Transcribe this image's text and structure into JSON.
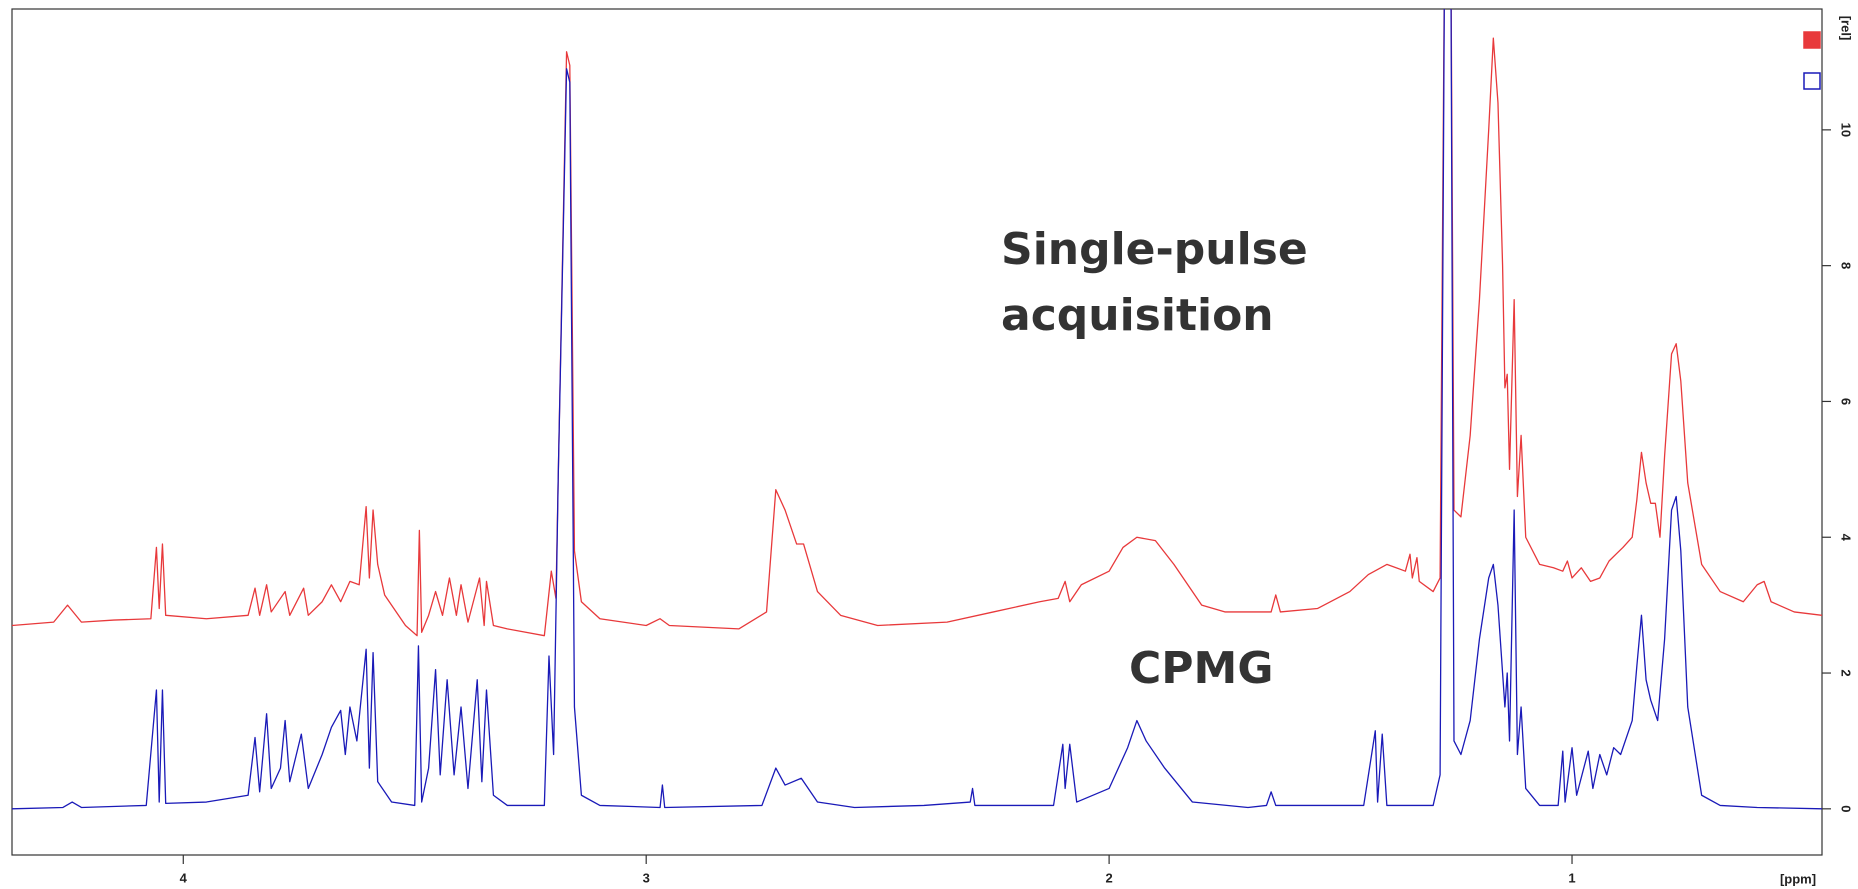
{
  "chart_data": {
    "type": "line",
    "xlabel": "[ppm]",
    "ylabel": "[rel]",
    "xlim": [
      4.37,
      0.46
    ],
    "ylim": [
      -0.68,
      11.78
    ],
    "xticks": [
      4,
      3,
      2,
      1
    ],
    "yticks": [
      0,
      2,
      4,
      6,
      8,
      10
    ],
    "annotations": [
      {
        "lines": [
          "Single-pulse",
          "acquisition"
        ]
      },
      {
        "lines": [
          "CPMG"
        ]
      }
    ],
    "series": [
      {
        "color": "#e8393b",
        "x": [
          4.37,
          4.28,
          4.25,
          4.22,
          4.15,
          4.07,
          4.058,
          4.052,
          4.045,
          4.038,
          3.95,
          3.86,
          3.845,
          3.835,
          3.82,
          3.81,
          3.78,
          3.77,
          3.74,
          3.73,
          3.7,
          3.68,
          3.66,
          3.64,
          3.62,
          3.605,
          3.598,
          3.59,
          3.58,
          3.565,
          3.52,
          3.495,
          3.49,
          3.485,
          3.47,
          3.455,
          3.44,
          3.425,
          3.41,
          3.4,
          3.385,
          3.36,
          3.35,
          3.345,
          3.33,
          3.3,
          3.22,
          3.205,
          3.195,
          3.19,
          3.172,
          3.165,
          3.155,
          3.14,
          3.1,
          3.0,
          2.97,
          2.95,
          2.8,
          2.74,
          2.72,
          2.7,
          2.675,
          2.66,
          2.63,
          2.58,
          2.5,
          2.35,
          2.25,
          2.15,
          2.11,
          2.095,
          2.085,
          2.06,
          2.0,
          1.97,
          1.94,
          1.9,
          1.86,
          1.8,
          1.75,
          1.65,
          1.64,
          1.63,
          1.55,
          1.48,
          1.44,
          1.4,
          1.36,
          1.35,
          1.345,
          1.335,
          1.33,
          1.3,
          1.285,
          1.275,
          1.262,
          1.255,
          1.24,
          1.22,
          1.2,
          1.18,
          1.17,
          1.16,
          1.15,
          1.145,
          1.14,
          1.135,
          1.125,
          1.118,
          1.11,
          1.1,
          1.07,
          1.04,
          1.02,
          1.01,
          1.0,
          0.98,
          0.96,
          0.94,
          0.92,
          0.905,
          0.89,
          0.87,
          0.86,
          0.85,
          0.84,
          0.83,
          0.82,
          0.81,
          0.8,
          0.785,
          0.775,
          0.765,
          0.75,
          0.72,
          0.68,
          0.63,
          0.6,
          0.585,
          0.57,
          0.52,
          0.46
        ],
        "values": [
          2.7,
          2.75,
          3.0,
          2.75,
          2.78,
          2.8,
          3.85,
          2.95,
          3.9,
          2.85,
          2.8,
          2.85,
          3.25,
          2.85,
          3.3,
          2.9,
          3.2,
          2.85,
          3.25,
          2.85,
          3.05,
          3.3,
          3.05,
          3.35,
          3.3,
          4.45,
          3.4,
          4.4,
          3.6,
          3.15,
          2.7,
          2.55,
          4.1,
          2.6,
          2.85,
          3.2,
          2.85,
          3.4,
          2.85,
          3.3,
          2.75,
          3.4,
          2.7,
          3.35,
          2.7,
          2.65,
          2.55,
          3.5,
          3.1,
          4.9,
          11.15,
          10.95,
          3.8,
          3.05,
          2.8,
          2.7,
          2.8,
          2.7,
          2.65,
          2.9,
          4.7,
          4.4,
          3.9,
          3.9,
          3.2,
          2.85,
          2.7,
          2.75,
          2.9,
          3.05,
          3.1,
          3.35,
          3.05,
          3.3,
          3.5,
          3.85,
          4.0,
          3.95,
          3.6,
          3.0,
          2.9,
          2.9,
          3.15,
          2.9,
          2.95,
          3.2,
          3.45,
          3.6,
          3.5,
          3.75,
          3.4,
          3.7,
          3.35,
          3.2,
          3.4,
          13.0,
          13.0,
          4.4,
          4.3,
          5.5,
          7.5,
          10.0,
          11.35,
          10.4,
          8.0,
          6.2,
          6.4,
          5.0,
          7.5,
          4.6,
          5.5,
          4.0,
          3.6,
          3.55,
          3.5,
          3.65,
          3.4,
          3.55,
          3.35,
          3.4,
          3.65,
          3.75,
          3.85,
          4.0,
          4.55,
          5.25,
          4.8,
          4.5,
          4.5,
          4.0,
          5.2,
          6.7,
          6.85,
          6.3,
          4.8,
          3.6,
          3.2,
          3.05,
          3.3,
          3.35,
          3.05,
          2.9,
          2.85
        ]
      },
      {
        "color": "#1a1ab8",
        "x": [
          4.37,
          4.26,
          4.24,
          4.22,
          4.08,
          4.058,
          4.052,
          4.045,
          4.038,
          3.95,
          3.86,
          3.845,
          3.835,
          3.82,
          3.81,
          3.79,
          3.78,
          3.77,
          3.745,
          3.73,
          3.7,
          3.68,
          3.66,
          3.65,
          3.64,
          3.625,
          3.605,
          3.598,
          3.59,
          3.58,
          3.55,
          3.5,
          3.492,
          3.485,
          3.47,
          3.455,
          3.445,
          3.43,
          3.415,
          3.4,
          3.385,
          3.365,
          3.355,
          3.345,
          3.33,
          3.3,
          3.22,
          3.21,
          3.2,
          3.19,
          3.172,
          3.165,
          3.155,
          3.14,
          3.1,
          2.97,
          2.965,
          2.96,
          2.75,
          2.72,
          2.7,
          2.665,
          2.63,
          2.55,
          2.4,
          2.3,
          2.295,
          2.29,
          2.12,
          2.1,
          2.095,
          2.085,
          2.07,
          2.0,
          1.96,
          1.94,
          1.92,
          1.88,
          1.82,
          1.7,
          1.66,
          1.65,
          1.64,
          1.45,
          1.425,
          1.42,
          1.41,
          1.4,
          1.3,
          1.285,
          1.275,
          1.262,
          1.255,
          1.24,
          1.22,
          1.2,
          1.18,
          1.17,
          1.16,
          1.15,
          1.145,
          1.14,
          1.135,
          1.125,
          1.118,
          1.11,
          1.1,
          1.07,
          1.03,
          1.02,
          1.015,
          1.0,
          0.99,
          0.965,
          0.955,
          0.94,
          0.925,
          0.91,
          0.895,
          0.87,
          0.86,
          0.85,
          0.84,
          0.83,
          0.815,
          0.8,
          0.785,
          0.775,
          0.765,
          0.75,
          0.72,
          0.68,
          0.6,
          0.46
        ],
        "values": [
          0.0,
          0.02,
          0.1,
          0.02,
          0.05,
          1.75,
          0.1,
          1.75,
          0.08,
          0.1,
          0.2,
          1.05,
          0.25,
          1.4,
          0.3,
          0.6,
          1.3,
          0.4,
          1.1,
          0.3,
          0.8,
          1.2,
          1.45,
          0.8,
          1.5,
          1.0,
          2.35,
          0.6,
          2.3,
          0.4,
          0.1,
          0.05,
          2.4,
          0.1,
          0.6,
          2.05,
          0.5,
          1.9,
          0.5,
          1.5,
          0.3,
          1.9,
          0.4,
          1.75,
          0.2,
          0.05,
          0.05,
          2.25,
          0.8,
          4.9,
          10.9,
          10.7,
          1.5,
          0.2,
          0.05,
          0.02,
          0.35,
          0.02,
          0.05,
          0.6,
          0.35,
          0.45,
          0.1,
          0.02,
          0.05,
          0.1,
          0.3,
          0.05,
          0.05,
          0.95,
          0.3,
          0.95,
          0.1,
          0.3,
          0.9,
          1.3,
          1.0,
          0.6,
          0.1,
          0.02,
          0.05,
          0.25,
          0.05,
          0.05,
          1.15,
          0.1,
          1.1,
          0.05,
          0.05,
          0.5,
          13.0,
          13.0,
          1.0,
          0.8,
          1.3,
          2.5,
          3.4,
          3.6,
          3.0,
          2.0,
          1.5,
          2.0,
          1.0,
          4.4,
          0.8,
          1.5,
          0.3,
          0.05,
          0.05,
          0.85,
          0.1,
          0.9,
          0.2,
          0.85,
          0.3,
          0.8,
          0.5,
          0.9,
          0.8,
          1.3,
          2.1,
          2.85,
          1.9,
          1.6,
          1.3,
          2.5,
          4.4,
          4.6,
          3.8,
          1.5,
          0.2,
          0.05,
          0.02,
          0.0
        ]
      }
    ]
  }
}
